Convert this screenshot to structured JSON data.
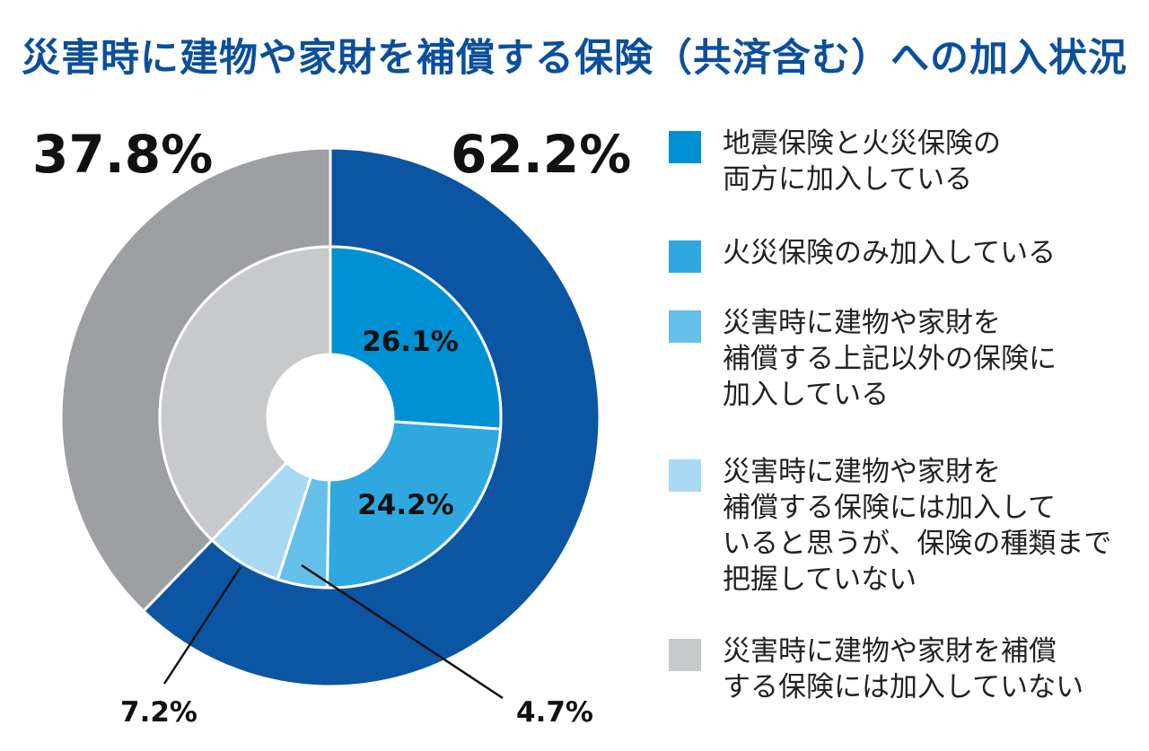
{
  "chart_data": {
    "type": "pie",
    "title": "災害時に建物や家財を補償する保険（共済含む）への加入状況",
    "outer_ring": {
      "labels": [
        "62.2%",
        "37.8%"
      ],
      "values": [
        62.2,
        37.8
      ],
      "colors": [
        "#0b55a3",
        "#9d9fa2"
      ]
    },
    "inner_ring": {
      "labels": [
        "26.1%",
        "24.2%",
        "4.7%",
        "7.2%",
        ""
      ],
      "values": [
        26.1,
        24.2,
        4.7,
        7.2,
        37.8
      ],
      "colors": [
        "#0091d5",
        "#2fa8e0",
        "#64bfe9",
        "#a9d8f3",
        "#c8c9cb"
      ]
    },
    "legend": [
      "地震保険と火災保険の両方に加入している",
      "火災保険のみ加入している",
      "災害時に建物や家財を補償する上記以外の保険に加入している",
      "災害時に建物や家財を補償する保険には加入していると思うが、保険の種類まで把握していない",
      "災害時に建物や家財を補償する保険には加入していない"
    ],
    "legend_lines": [
      [
        "地震保険と火災保険の",
        "両方に加入している"
      ],
      [
        "火災保険のみ加入している"
      ],
      [
        "災害時に建物や家財を",
        "補償する上記以外の保険に",
        "加入している"
      ],
      [
        "災害時に建物や家財を",
        "補償する保険には加入して",
        "いると思うが、保険の種類まで",
        "把握していない"
      ],
      [
        "災害時に建物や家財を補償",
        "する保険には加入していない"
      ]
    ]
  }
}
